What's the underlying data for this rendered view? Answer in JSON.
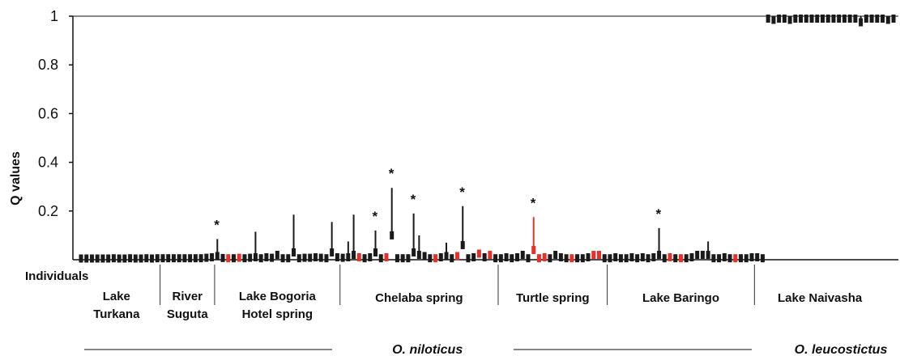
{
  "chart_data": {
    "type": "bar",
    "ylabel": "Q values",
    "xlabel": "Individuals",
    "ylim": [
      0,
      1
    ],
    "yticks": [
      "0.2",
      "0.4",
      "0.6",
      "0.8",
      "1"
    ],
    "ytick_values": [
      0.2,
      0.4,
      0.6,
      0.8,
      1.0
    ],
    "colors": {
      "default": "#1a1a1a",
      "highlight": "#e8302a",
      "axis": "#111111"
    },
    "populations": [
      {
        "lines": [
          "Lake",
          "Turkana"
        ],
        "start": 0,
        "end": 15
      },
      {
        "lines": [
          "River",
          "Suguta"
        ],
        "start": 15,
        "end": 25
      },
      {
        "lines": [
          "Lake Bogoria",
          "Hotel spring"
        ],
        "start": 25,
        "end": 48
      },
      {
        "lines": [
          "Chelaba spring"
        ],
        "start": 48,
        "end": 77
      },
      {
        "lines": [
          "Turtle spring"
        ],
        "start": 77,
        "end": 97
      },
      {
        "lines": [
          "Lake Baringo"
        ],
        "start": 97,
        "end": 124
      },
      {
        "lines": [
          "Lake Naivasha"
        ],
        "start": 124,
        "end": 148
      }
    ],
    "species": [
      {
        "name": "O. niloticus",
        "start": 0,
        "end": 124
      },
      {
        "name": "O. leucostictus",
        "start": 124,
        "end": 148
      }
    ],
    "individuals": [
      {
        "q": 0.005,
        "hi": 0.015,
        "c": 0
      },
      {
        "q": 0.005,
        "hi": 0.015,
        "c": 0
      },
      {
        "q": 0.005,
        "hi": 0.015,
        "c": 0
      },
      {
        "q": 0.005,
        "hi": 0.015,
        "c": 0
      },
      {
        "q": 0.005,
        "hi": 0.015,
        "c": 0
      },
      {
        "q": 0.005,
        "hi": 0.015,
        "c": 0
      },
      {
        "q": 0.006,
        "hi": 0.015,
        "c": 0
      },
      {
        "q": 0.005,
        "hi": 0.015,
        "c": 0
      },
      {
        "q": 0.005,
        "hi": 0.015,
        "c": 0
      },
      {
        "q": 0.006,
        "hi": 0.015,
        "c": 0
      },
      {
        "q": 0.005,
        "hi": 0.015,
        "c": 0
      },
      {
        "q": 0.005,
        "hi": 0.015,
        "c": 0
      },
      {
        "q": 0.006,
        "hi": 0.015,
        "c": 0
      },
      {
        "q": 0.005,
        "hi": 0.015,
        "c": 0
      },
      {
        "q": 0.006,
        "hi": 0.015,
        "c": 0
      },
      {
        "q": 0.006,
        "hi": 0.015,
        "c": 0
      },
      {
        "q": 0.006,
        "hi": 0.015,
        "c": 0
      },
      {
        "q": 0.006,
        "hi": 0.015,
        "c": 0
      },
      {
        "q": 0.006,
        "hi": 0.015,
        "c": 0
      },
      {
        "q": 0.006,
        "hi": 0.015,
        "c": 0
      },
      {
        "q": 0.006,
        "hi": 0.015,
        "c": 0
      },
      {
        "q": 0.006,
        "hi": 0.015,
        "c": 0
      },
      {
        "q": 0.006,
        "hi": 0.015,
        "c": 0
      },
      {
        "q": 0.008,
        "hi": 0.02,
        "c": 0
      },
      {
        "q": 0.01,
        "hi": 0.02,
        "c": 0
      },
      {
        "q": 0.015,
        "hi": 0.085,
        "c": 0,
        "star": true
      },
      {
        "q": 0.007,
        "hi": 0.018,
        "c": 0
      },
      {
        "q": 0.006,
        "hi": 0.016,
        "c": 1
      },
      {
        "q": 0.006,
        "hi": 0.016,
        "c": 0
      },
      {
        "q": 0.008,
        "hi": 0.02,
        "c": 1
      },
      {
        "q": 0.006,
        "hi": 0.016,
        "c": 0
      },
      {
        "q": 0.008,
        "hi": 0.02,
        "c": 0
      },
      {
        "q": 0.01,
        "hi": 0.115,
        "c": 0
      },
      {
        "q": 0.006,
        "hi": 0.016,
        "c": 0
      },
      {
        "q": 0.01,
        "hi": 0.02,
        "c": 0
      },
      {
        "q": 0.008,
        "hi": 0.02,
        "c": 0
      },
      {
        "q": 0.02,
        "hi": 0.04,
        "c": 0
      },
      {
        "q": 0.006,
        "hi": 0.016,
        "c": 0
      },
      {
        "q": 0.006,
        "hi": 0.016,
        "c": 0
      },
      {
        "q": 0.03,
        "hi": 0.185,
        "c": 0
      },
      {
        "q": 0.006,
        "hi": 0.016,
        "c": 0
      },
      {
        "q": 0.008,
        "hi": 0.02,
        "c": 0
      },
      {
        "q": 0.008,
        "hi": 0.02,
        "c": 0
      },
      {
        "q": 0.01,
        "hi": 0.022,
        "c": 0
      },
      {
        "q": 0.008,
        "hi": 0.02,
        "c": 0
      },
      {
        "q": 0.006,
        "hi": 0.016,
        "c": 0
      },
      {
        "q": 0.03,
        "hi": 0.155,
        "c": 0
      },
      {
        "q": 0.01,
        "hi": 0.025,
        "c": 0
      },
      {
        "q": 0.008,
        "hi": 0.022,
        "c": 0
      },
      {
        "q": 0.01,
        "hi": 0.075,
        "c": 0
      },
      {
        "q": 0.02,
        "hi": 0.185,
        "c": 0
      },
      {
        "q": 0.01,
        "hi": 0.02,
        "c": 1
      },
      {
        "q": 0.006,
        "hi": 0.016,
        "c": 0
      },
      {
        "q": 0.01,
        "hi": 0.02,
        "c": 0
      },
      {
        "q": 0.03,
        "hi": 0.12,
        "c": 0,
        "star": true
      },
      {
        "q": 0.006,
        "hi": 0.016,
        "c": 0
      },
      {
        "q": 0.01,
        "hi": 0.02,
        "c": 1
      },
      {
        "q": 0.1,
        "hi": 0.295,
        "c": 0,
        "star": true
      },
      {
        "q": 0.006,
        "hi": 0.016,
        "c": 0
      },
      {
        "q": 0.006,
        "hi": 0.016,
        "c": 0
      },
      {
        "q": 0.006,
        "hi": 0.016,
        "c": 0
      },
      {
        "q": 0.03,
        "hi": 0.19,
        "c": 0,
        "star": true
      },
      {
        "q": 0.02,
        "hi": 0.1,
        "c": 0
      },
      {
        "q": 0.015,
        "hi": 0.025,
        "c": 0
      },
      {
        "q": 0.006,
        "hi": 0.016,
        "c": 0
      },
      {
        "q": 0.006,
        "hi": 0.016,
        "c": 1
      },
      {
        "q": 0.01,
        "hi": 0.02,
        "c": 0
      },
      {
        "q": 0.015,
        "hi": 0.07,
        "c": 0
      },
      {
        "q": 0.006,
        "hi": 0.016,
        "c": 0
      },
      {
        "q": 0.015,
        "hi": 0.025,
        "c": 1
      },
      {
        "q": 0.06,
        "hi": 0.22,
        "c": 0,
        "star": true
      },
      {
        "q": 0.006,
        "hi": 0.016,
        "c": 0
      },
      {
        "q": 0.01,
        "hi": 0.02,
        "c": 0
      },
      {
        "q": 0.025,
        "hi": 0.03,
        "c": 1
      },
      {
        "q": 0.01,
        "hi": 0.025,
        "c": 0
      },
      {
        "q": 0.02,
        "hi": 0.03,
        "c": 1
      },
      {
        "q": 0.006,
        "hi": 0.016,
        "c": 0
      },
      {
        "q": 0.006,
        "hi": 0.016,
        "c": 0
      },
      {
        "q": 0.01,
        "hi": 0.02,
        "c": 0
      },
      {
        "q": 0.006,
        "hi": 0.016,
        "c": 0
      },
      {
        "q": 0.01,
        "hi": 0.02,
        "c": 0
      },
      {
        "q": 0.02,
        "hi": 0.025,
        "c": 0
      },
      {
        "q": 0.006,
        "hi": 0.016,
        "c": 0
      },
      {
        "q": 0.04,
        "hi": 0.175,
        "c": 1,
        "star": true
      },
      {
        "q": 0.006,
        "hi": 0.016,
        "c": 1
      },
      {
        "q": 0.01,
        "hi": 0.02,
        "c": 1
      },
      {
        "q": 0.006,
        "hi": 0.016,
        "c": 0
      },
      {
        "q": 0.02,
        "hi": 0.03,
        "c": 0
      },
      {
        "q": 0.01,
        "hi": 0.02,
        "c": 0
      },
      {
        "q": 0.006,
        "hi": 0.016,
        "c": 0
      },
      {
        "q": 0.006,
        "hi": 0.016,
        "c": 1
      },
      {
        "q": 0.006,
        "hi": 0.016,
        "c": 0
      },
      {
        "q": 0.006,
        "hi": 0.016,
        "c": 0
      },
      {
        "q": 0.01,
        "hi": 0.02,
        "c": 0
      },
      {
        "q": 0.02,
        "hi": 0.025,
        "c": 1
      },
      {
        "q": 0.02,
        "hi": 0.025,
        "c": 1
      },
      {
        "q": 0.006,
        "hi": 0.016,
        "c": 0
      },
      {
        "q": 0.006,
        "hi": 0.016,
        "c": 0
      },
      {
        "q": 0.01,
        "hi": 0.02,
        "c": 0
      },
      {
        "q": 0.006,
        "hi": 0.016,
        "c": 0
      },
      {
        "q": 0.006,
        "hi": 0.016,
        "c": 0
      },
      {
        "q": 0.01,
        "hi": 0.02,
        "c": 0
      },
      {
        "q": 0.006,
        "hi": 0.016,
        "c": 0
      },
      {
        "q": 0.01,
        "hi": 0.02,
        "c": 0
      },
      {
        "q": 0.006,
        "hi": 0.016,
        "c": 0
      },
      {
        "q": 0.01,
        "hi": 0.02,
        "c": 0
      },
      {
        "q": 0.02,
        "hi": 0.13,
        "c": 0,
        "star": true
      },
      {
        "q": 0.006,
        "hi": 0.016,
        "c": 0
      },
      {
        "q": 0.01,
        "hi": 0.02,
        "c": 1
      },
      {
        "q": 0.006,
        "hi": 0.016,
        "c": 0
      },
      {
        "q": 0.006,
        "hi": 0.016,
        "c": 1
      },
      {
        "q": 0.006,
        "hi": 0.016,
        "c": 0
      },
      {
        "q": 0.01,
        "hi": 0.02,
        "c": 0
      },
      {
        "q": 0.02,
        "hi": 0.025,
        "c": 0
      },
      {
        "q": 0.02,
        "hi": 0.025,
        "c": 0
      },
      {
        "q": 0.02,
        "hi": 0.075,
        "c": 0
      },
      {
        "q": 0.006,
        "hi": 0.016,
        "c": 0
      },
      {
        "q": 0.006,
        "hi": 0.016,
        "c": 0
      },
      {
        "q": 0.01,
        "hi": 0.02,
        "c": 0
      },
      {
        "q": 0.006,
        "hi": 0.016,
        "c": 0
      },
      {
        "q": 0.006,
        "hi": 0.016,
        "c": 1
      },
      {
        "q": 0.006,
        "hi": 0.016,
        "c": 0
      },
      {
        "q": 0.006,
        "hi": 0.016,
        "c": 0
      },
      {
        "q": 0.01,
        "hi": 0.02,
        "c": 0
      },
      {
        "q": 0.01,
        "hi": 0.02,
        "c": 0
      },
      {
        "q": 0.006,
        "hi": 0.016,
        "c": 0
      },
      {
        "q": 0.99,
        "hi": 1.0,
        "c": 0
      },
      {
        "q": 0.985,
        "hi": 1.0,
        "c": 0
      },
      {
        "q": 0.99,
        "hi": 1.0,
        "c": 0
      },
      {
        "q": 0.99,
        "hi": 1.0,
        "c": 0
      },
      {
        "q": 0.985,
        "hi": 1.0,
        "c": 0
      },
      {
        "q": 0.99,
        "hi": 1.0,
        "c": 0
      },
      {
        "q": 0.99,
        "hi": 1.0,
        "c": 0
      },
      {
        "q": 0.99,
        "hi": 1.0,
        "c": 0
      },
      {
        "q": 0.99,
        "hi": 1.0,
        "c": 0
      },
      {
        "q": 0.99,
        "hi": 1.0,
        "c": 0
      },
      {
        "q": 0.99,
        "hi": 1.0,
        "c": 0
      },
      {
        "q": 0.99,
        "hi": 1.0,
        "c": 0
      },
      {
        "q": 0.99,
        "hi": 1.0,
        "c": 0
      },
      {
        "q": 0.99,
        "hi": 1.0,
        "c": 0
      },
      {
        "q": 0.99,
        "hi": 1.0,
        "c": 0
      },
      {
        "q": 0.99,
        "hi": 1.0,
        "c": 0
      },
      {
        "q": 0.99,
        "hi": 1.0,
        "c": 0
      },
      {
        "q": 0.975,
        "hi": 1.0,
        "c": 0
      },
      {
        "q": 0.99,
        "hi": 1.0,
        "c": 0
      },
      {
        "q": 0.99,
        "hi": 1.0,
        "c": 0
      },
      {
        "q": 0.99,
        "hi": 1.0,
        "c": 0
      },
      {
        "q": 0.99,
        "hi": 1.0,
        "c": 0
      },
      {
        "q": 0.985,
        "hi": 1.0,
        "c": 0
      },
      {
        "q": 0.99,
        "hi": 1.0,
        "c": 0
      }
    ]
  }
}
